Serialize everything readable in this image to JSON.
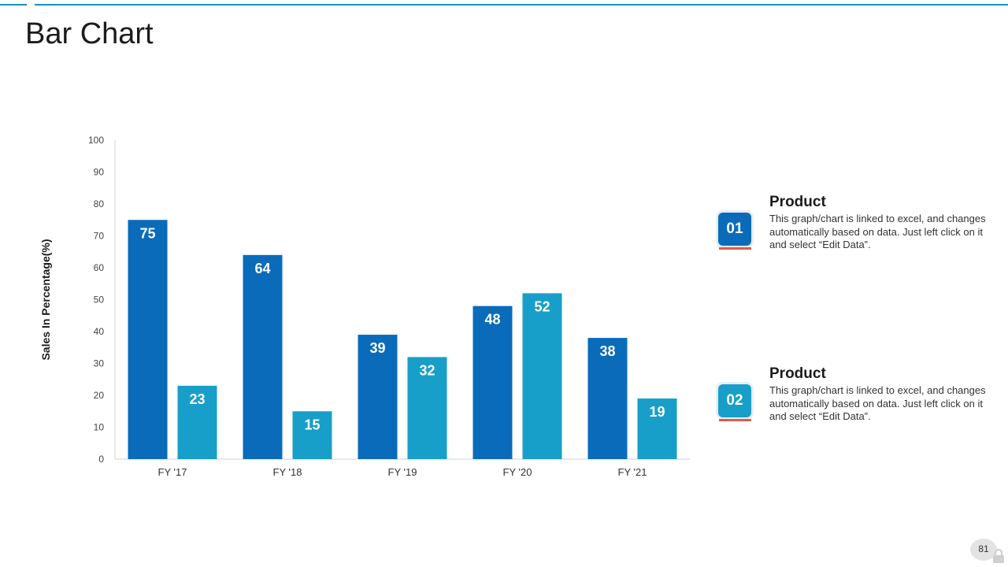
{
  "page": {
    "title": "Bar Chart",
    "page_number": "81"
  },
  "colors": {
    "series1": "#0a6bbb",
    "series2": "#179fc9",
    "accent_line": "#1a8fc4",
    "underline": "#e05a47"
  },
  "legend": [
    {
      "badge": "01",
      "title": "Product",
      "text": "This graph/chart is linked to excel,  and changes automatically based on data. Just left click on it and select “Edit Data”.",
      "color": "#0a6bbb"
    },
    {
      "badge": "02",
      "title": "Product",
      "text": "This graph/chart is linked to excel,  and changes automatically based on data. Just left click on it and select “Edit Data”.",
      "color": "#179fc9"
    }
  ],
  "chart_data": {
    "type": "bar",
    "categories": [
      "FY '17",
      "FY '18",
      "FY '19",
      "FY '20",
      "FY '21"
    ],
    "series": [
      {
        "values": [
          75,
          64,
          39,
          48,
          38
        ]
      },
      {
        "values": [
          23,
          15,
          32,
          52,
          19
        ]
      }
    ],
    "ylabel": "Sales In Percentage(%)",
    "ylim": [
      0,
      100
    ],
    "yticks": [
      0,
      10,
      20,
      30,
      40,
      50,
      60,
      70,
      80,
      90,
      100
    ],
    "grid": false,
    "data_labels": true
  }
}
